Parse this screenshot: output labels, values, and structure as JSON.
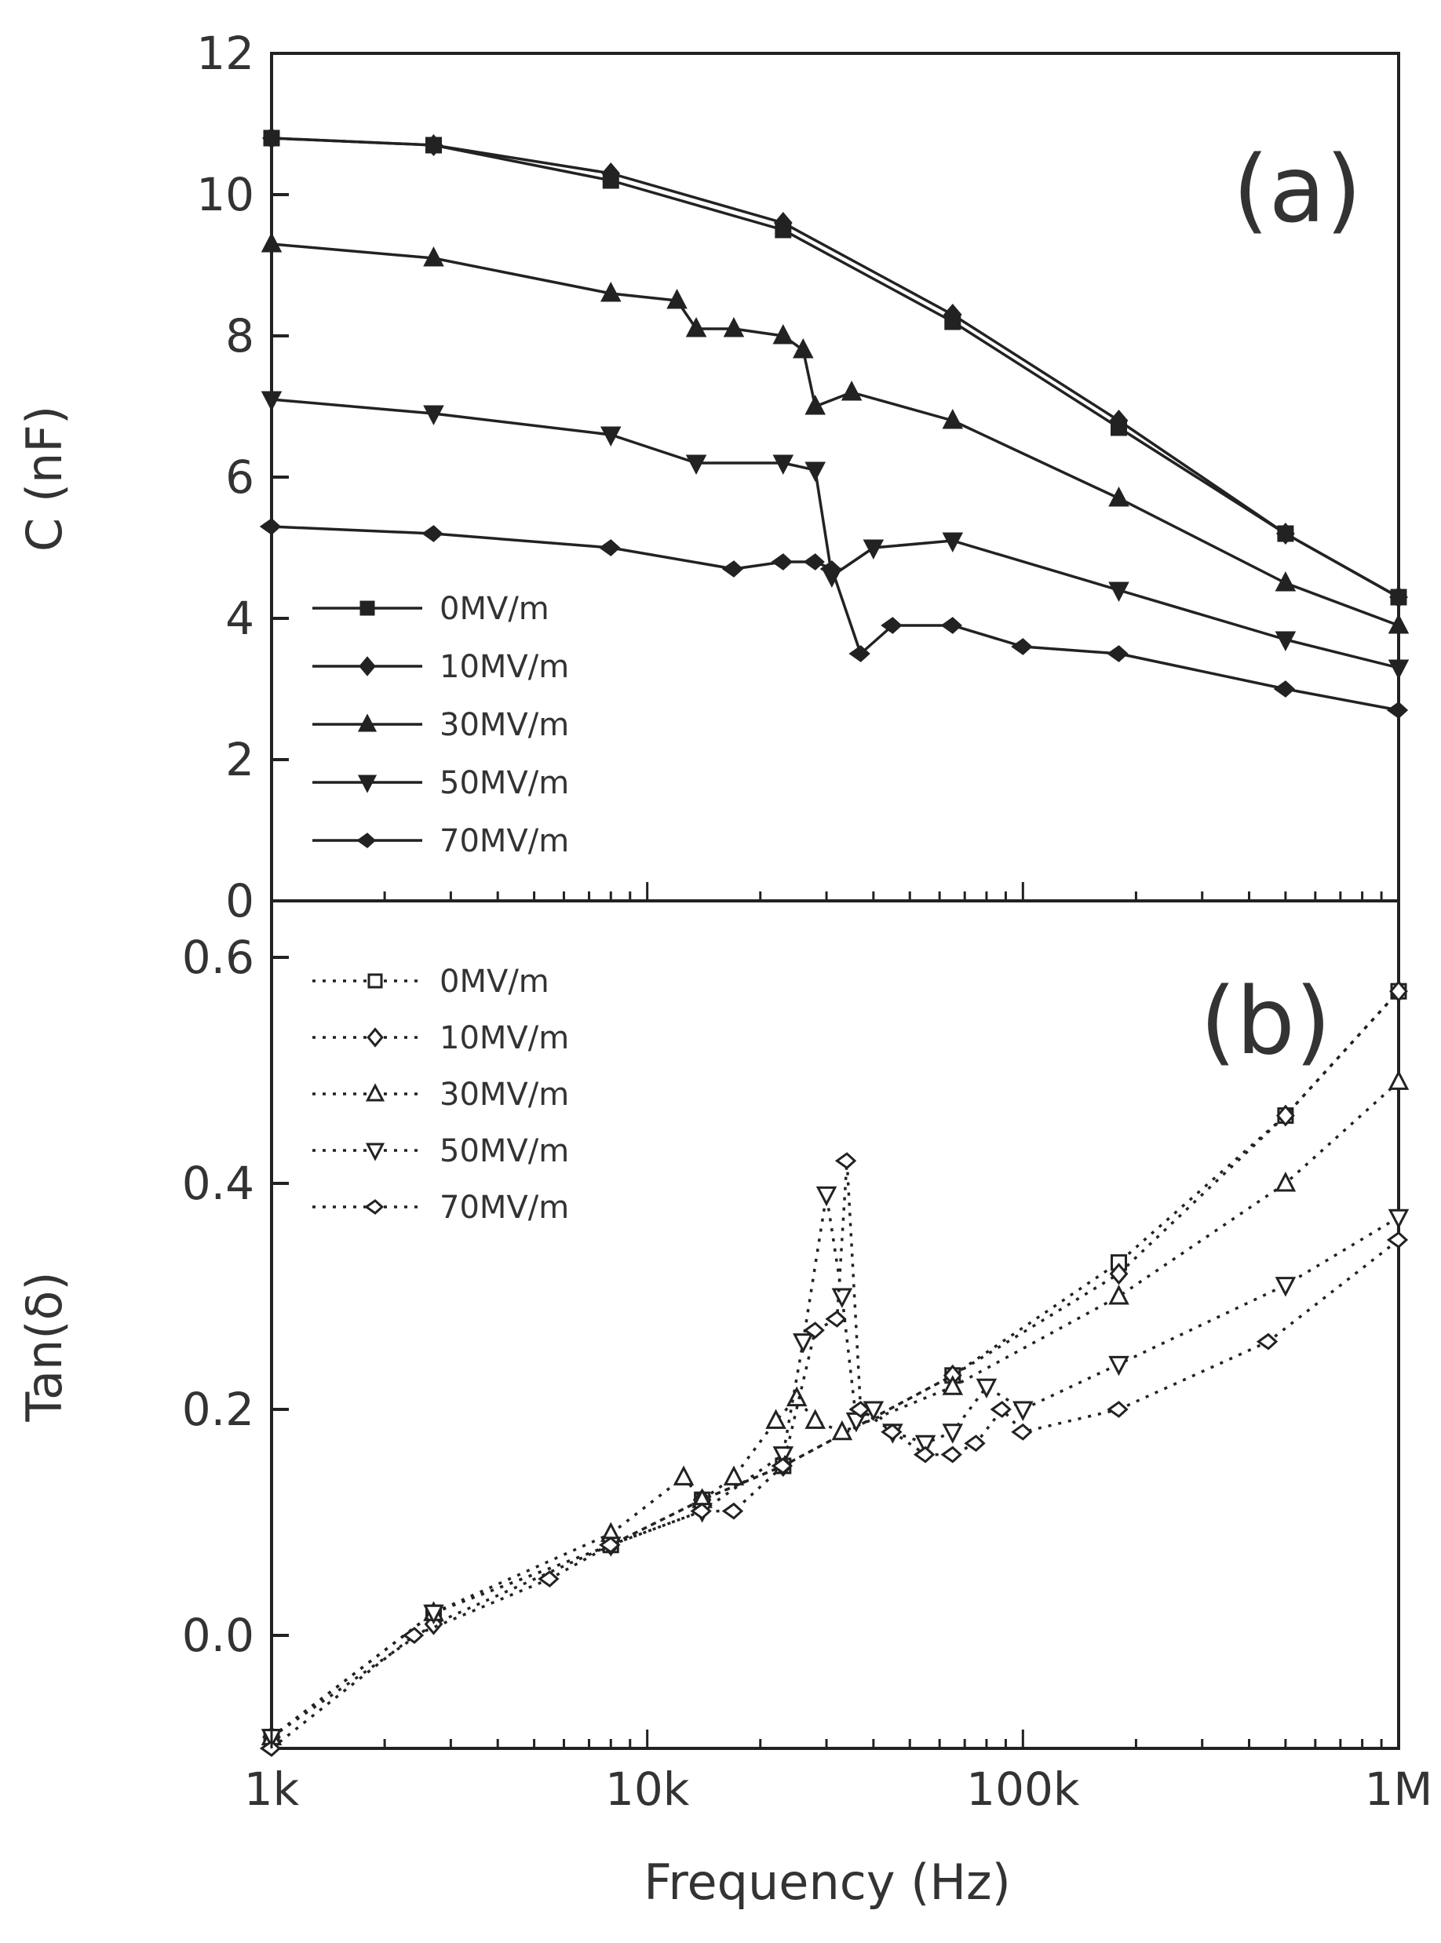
{
  "chart_data": [
    {
      "type": "line",
      "panel_label": "(a)",
      "ylabel": "C (nF)",
      "xlabel": "",
      "xscale": "log",
      "xlim": [
        1000,
        1000000
      ],
      "ylim": [
        0,
        12
      ],
      "x_ticks": [
        1000,
        10000,
        100000,
        1000000
      ],
      "y_ticks": [
        0,
        2,
        4,
        6,
        8,
        10,
        12
      ],
      "y_tick_labels": [
        "0",
        "2",
        "4",
        "6",
        "8",
        "10",
        "12"
      ],
      "grid": false,
      "legend_position": "bottom-left",
      "series": [
        {
          "name": "0MV/m",
          "marker": "square",
          "filled": true,
          "dash": "solid",
          "x": [
            1000,
            2700,
            8000,
            23000,
            65000,
            180000,
            500000,
            1000000
          ],
          "y": [
            10.8,
            10.7,
            10.2,
            9.5,
            8.2,
            6.7,
            5.2,
            4.3
          ]
        },
        {
          "name": "10MV/m",
          "marker": "diamond",
          "filled": true,
          "dash": "solid",
          "x": [
            1000,
            2700,
            8000,
            23000,
            65000,
            180000,
            500000,
            1000000
          ],
          "y": [
            10.8,
            10.7,
            10.3,
            9.6,
            8.3,
            6.8,
            5.2,
            4.3
          ]
        },
        {
          "name": "30MV/m",
          "marker": "triangle-up",
          "filled": true,
          "dash": "solid",
          "x": [
            1000,
            2700,
            8000,
            12000,
            13500,
            17000,
            23000,
            26000,
            28000,
            35000,
            65000,
            180000,
            500000,
            1000000
          ],
          "y": [
            9.3,
            9.1,
            8.6,
            8.5,
            8.1,
            8.1,
            8.0,
            7.8,
            7.0,
            7.2,
            6.8,
            5.7,
            4.5,
            3.9
          ]
        },
        {
          "name": "50MV/m",
          "marker": "triangle-down",
          "filled": true,
          "dash": "solid",
          "x": [
            1000,
            2700,
            8000,
            13500,
            23000,
            28000,
            31000,
            40000,
            65000,
            180000,
            500000,
            1000000
          ],
          "y": [
            7.1,
            6.9,
            6.6,
            6.2,
            6.2,
            6.1,
            4.6,
            5.0,
            5.1,
            4.4,
            3.7,
            3.3
          ]
        },
        {
          "name": "70MV/m",
          "marker": "diamond-left",
          "filled": true,
          "dash": "solid",
          "x": [
            1000,
            2700,
            8000,
            17000,
            23000,
            28000,
            31000,
            37000,
            45000,
            65000,
            100000,
            180000,
            500000,
            1000000
          ],
          "y": [
            5.3,
            5.2,
            5.0,
            4.7,
            4.8,
            4.8,
            4.7,
            3.5,
            3.9,
            3.9,
            3.6,
            3.5,
            3.0,
            2.7
          ]
        }
      ]
    },
    {
      "type": "line",
      "panel_label": "(b)",
      "ylabel": "Tan(δ)",
      "xlabel": "Frequency (Hz)",
      "xscale": "log",
      "xlim": [
        1000,
        1000000
      ],
      "ylim": [
        -0.1,
        0.65
      ],
      "x_ticks": [
        1000,
        10000,
        100000,
        1000000
      ],
      "x_tick_labels": [
        "1k",
        "10k",
        "100k",
        "1M"
      ],
      "y_ticks": [
        0.0,
        0.2,
        0.4,
        0.6
      ],
      "y_tick_labels": [
        "0.0",
        "0.2",
        "0.4",
        "0.6"
      ],
      "grid": false,
      "legend_position": "top-left",
      "series": [
        {
          "name": "0MV/m",
          "marker": "square",
          "filled": false,
          "dash": "dotted",
          "x": [
            1000,
            2700,
            8000,
            14000,
            23000,
            65000,
            180000,
            500000,
            1000000
          ],
          "y": [
            -0.09,
            0.02,
            0.08,
            0.12,
            0.15,
            0.23,
            0.33,
            0.46,
            0.57
          ]
        },
        {
          "name": "10MV/m",
          "marker": "diamond",
          "filled": false,
          "dash": "dotted",
          "x": [
            1000,
            2700,
            8000,
            14000,
            23000,
            65000,
            180000,
            500000,
            1000000
          ],
          "y": [
            -0.09,
            0.01,
            0.08,
            0.12,
            0.15,
            0.23,
            0.32,
            0.46,
            0.57
          ]
        },
        {
          "name": "30MV/m",
          "marker": "triangle-up",
          "filled": false,
          "dash": "dotted",
          "x": [
            1000,
            2700,
            8000,
            12500,
            14000,
            17000,
            22000,
            25000,
            28000,
            33000,
            65000,
            180000,
            500000,
            1000000
          ],
          "y": [
            -0.09,
            0.02,
            0.09,
            0.14,
            0.12,
            0.14,
            0.19,
            0.21,
            0.19,
            0.18,
            0.22,
            0.3,
            0.4,
            0.49
          ]
        },
        {
          "name": "50MV/m",
          "marker": "triangle-down",
          "filled": false,
          "dash": "dotted",
          "x": [
            1000,
            2700,
            8000,
            14000,
            23000,
            26000,
            30000,
            33000,
            36000,
            40000,
            45000,
            55000,
            65000,
            80000,
            100000,
            180000,
            500000,
            1000000
          ],
          "y": [
            -0.09,
            0.02,
            0.08,
            0.11,
            0.16,
            0.26,
            0.39,
            0.3,
            0.19,
            0.2,
            0.18,
            0.17,
            0.18,
            0.22,
            0.2,
            0.24,
            0.31,
            0.37
          ]
        },
        {
          "name": "70MV/m",
          "marker": "diamond-left",
          "filled": false,
          "dash": "dotted",
          "x": [
            1000,
            2400,
            5500,
            8000,
            14000,
            17000,
            23000,
            28000,
            32000,
            34000,
            37000,
            45000,
            55000,
            65000,
            75000,
            88000,
            100000,
            180000,
            450000,
            1000000
          ],
          "y": [
            -0.1,
            0.0,
            0.05,
            0.08,
            0.11,
            0.11,
            0.15,
            0.27,
            0.28,
            0.42,
            0.2,
            0.18,
            0.16,
            0.16,
            0.17,
            0.2,
            0.18,
            0.2,
            0.26,
            0.35
          ]
        }
      ]
    }
  ]
}
